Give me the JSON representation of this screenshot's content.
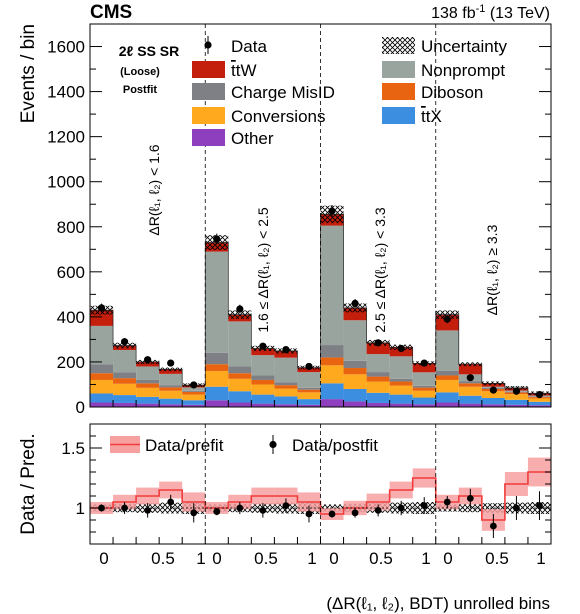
{
  "header": {
    "experiment": "CMS",
    "lumi_prefix": "138 fb",
    "lumi_sup": "-1",
    "lumi_suffix": " (13 TeV)"
  },
  "region": {
    "line1": "2ℓ SS SR",
    "line2": "(Loose)",
    "line3": "Postfit"
  },
  "chart_data": [
    {
      "type": "bar",
      "stacked": true,
      "ylabel": "Events / bin",
      "ylim": [
        0,
        1700
      ],
      "yticks": [
        0,
        200,
        400,
        600,
        800,
        1000,
        1200,
        1400,
        1600
      ],
      "bins": 20,
      "stack_order": [
        "Other",
        "ttX",
        "Conversions",
        "Diboson",
        "Charge MisID",
        "Nonprompt",
        "ttW"
      ],
      "series": [
        {
          "name": "Other",
          "color": "#8e3fbd",
          "values": [
            20,
            18,
            15,
            12,
            10,
            30,
            20,
            15,
            12,
            10,
            35,
            25,
            18,
            15,
            12,
            20,
            15,
            12,
            10,
            8
          ]
        },
        {
          "name": "ttX",
          "color": "#3c8fe0",
          "values": [
            40,
            35,
            30,
            25,
            20,
            60,
            50,
            40,
            35,
            25,
            70,
            55,
            45,
            40,
            30,
            45,
            35,
            28,
            22,
            15
          ]
        },
        {
          "name": "Conversions",
          "color": "#ffa91e",
          "values": [
            60,
            50,
            40,
            35,
            25,
            70,
            55,
            45,
            35,
            30,
            80,
            65,
            50,
            40,
            30,
            55,
            40,
            30,
            25,
            15
          ]
        },
        {
          "name": "Diboson",
          "color": "#e86410",
          "values": [
            30,
            25,
            20,
            15,
            12,
            30,
            25,
            20,
            15,
            12,
            35,
            28,
            22,
            18,
            14,
            20,
            15,
            10,
            8,
            6
          ]
        },
        {
          "name": "Charge MisID",
          "color": "#7f7f86",
          "values": [
            40,
            25,
            15,
            10,
            5,
            50,
            30,
            20,
            12,
            8,
            55,
            32,
            20,
            12,
            8,
            20,
            10,
            5,
            3,
            2
          ]
        },
        {
          "name": "Nonprompt",
          "color": "#9aa49e",
          "values": [
            170,
            100,
            60,
            50,
            15,
            450,
            200,
            90,
            110,
            70,
            530,
            180,
            80,
            100,
            60,
            180,
            30,
            5,
            5,
            5
          ]
        },
        {
          "name": "ttW",
          "color": "#c41e0d",
          "values": [
            70,
            20,
            20,
            20,
            10,
            40,
            30,
            30,
            30,
            20,
            50,
            55,
            50,
            40,
            40,
            70,
            45,
            15,
            12,
            10
          ]
        }
      ],
      "data_points": [
        440,
        290,
        210,
        195,
        98,
        745,
        435,
        270,
        255,
        180,
        870,
        460,
        285,
        260,
        195,
        390,
        130,
        75,
        70,
        55
      ],
      "uncertainty_label": "Uncertainty",
      "legend": [
        {
          "label": "Data",
          "kind": "marker"
        },
        {
          "label": "Uncertainty",
          "kind": "hatch"
        },
        {
          "label": "ttW",
          "html": "t̅t̅W",
          "kind": "fill",
          "color": "#c41e0d"
        },
        {
          "label": "Nonprompt",
          "kind": "fill",
          "color": "#9aa49e"
        },
        {
          "label": "Charge MisID",
          "kind": "fill",
          "color": "#7f7f86"
        },
        {
          "label": "Diboson",
          "kind": "fill",
          "color": "#e86410"
        },
        {
          "label": "Conversions",
          "kind": "fill",
          "color": "#ffa91e"
        },
        {
          "label": "ttX",
          "kind": "fill",
          "color": "#3c8fe0"
        },
        {
          "label": "Other",
          "kind": "fill",
          "color": "#8e3fbd"
        }
      ],
      "region_labels": [
        "ΔR(ℓ₁, ℓ₂) < 1.6",
        "1.6 ≤ ΔR(ℓ₁, ℓ₂) < 2.5",
        "2.5 ≤ ΔR(ℓ₁, ℓ₂) < 3.3",
        "ΔR(ℓ₁, ℓ₂) ≥ 3.3"
      ]
    },
    {
      "type": "line",
      "ylabel": "Data / Pred.",
      "ylim": [
        0.7,
        1.7
      ],
      "yticks": [
        1,
        1.5
      ],
      "xlabel": "(ΔR(ℓ₁, ℓ₂), BDT) unrolled bins",
      "xtick_labels": [
        "0",
        "0.5",
        "1",
        "0",
        "0.5",
        "1",
        "0",
        "0.5",
        "1",
        "0",
        "0.5",
        "1"
      ],
      "series": [
        {
          "name": "Data/prefit",
          "color": "#f03c3c",
          "band_color": "#f7a0a0",
          "values": [
            1.0,
            1.05,
            1.1,
            1.15,
            1.05,
            1.0,
            1.05,
            1.1,
            1.1,
            1.05,
            0.95,
            1.0,
            1.05,
            1.15,
            1.25,
            1.05,
            1.1,
            0.9,
            1.2,
            1.3
          ],
          "band": [
            0.05,
            0.06,
            0.07,
            0.07,
            0.08,
            0.05,
            0.06,
            0.07,
            0.07,
            0.08,
            0.05,
            0.06,
            0.07,
            0.07,
            0.08,
            0.06,
            0.07,
            0.09,
            0.1,
            0.12
          ]
        },
        {
          "name": "Data/postfit",
          "values": [
            1.0,
            1.0,
            0.98,
            1.05,
            0.96,
            0.97,
            1.0,
            0.98,
            1.02,
            0.95,
            0.95,
            0.96,
            0.98,
            1.0,
            1.02,
            1.05,
            1.08,
            0.85,
            1.0,
            1.02
          ],
          "errors": [
            0.03,
            0.05,
            0.06,
            0.06,
            0.08,
            0.03,
            0.05,
            0.06,
            0.06,
            0.07,
            0.03,
            0.04,
            0.05,
            0.06,
            0.07,
            0.05,
            0.08,
            0.1,
            0.1,
            0.12
          ]
        }
      ]
    }
  ]
}
